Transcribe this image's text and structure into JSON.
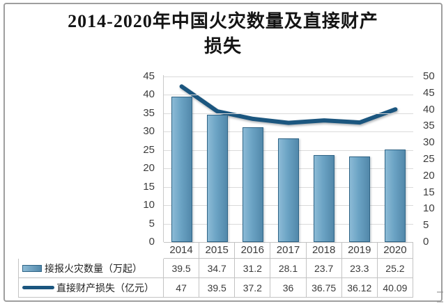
{
  "title_lines": [
    "2014-2020年中国火灾数量及直接财产",
    "损失"
  ],
  "chart_data": {
    "type": "combo-bar-line",
    "title": "2014-2020年中国火灾数量及直接财产损失",
    "categories": [
      "2014",
      "2015",
      "2016",
      "2017",
      "2018",
      "2019",
      "2020"
    ],
    "series": [
      {
        "name": "接报火灾数量（万起）",
        "type": "bar",
        "axis": "left",
        "values": [
          39.5,
          34.7,
          31.2,
          28.1,
          23.7,
          23.3,
          25.2
        ]
      },
      {
        "name": "直接财产损失（亿元）",
        "type": "line",
        "axis": "right",
        "values": [
          47,
          39.5,
          37.2,
          36,
          36.75,
          36.12,
          40.09
        ]
      }
    ],
    "axes": {
      "left": {
        "min": 0,
        "max": 45,
        "step": 5
      },
      "right": {
        "min": 0,
        "max": 50,
        "step": 5
      }
    },
    "grid": "horizontal",
    "legend_position": "bottom-data-table",
    "colors": {
      "bar_fill_light": "#8cbbd6",
      "bar_fill_dark": "#5288aa",
      "bar_border": "#2e6385",
      "line": "#1b567f",
      "gridline": "#dadada",
      "table_border": "#c3c3c3",
      "axis_text": "#3c3c3c",
      "title_text": "#141414"
    }
  }
}
